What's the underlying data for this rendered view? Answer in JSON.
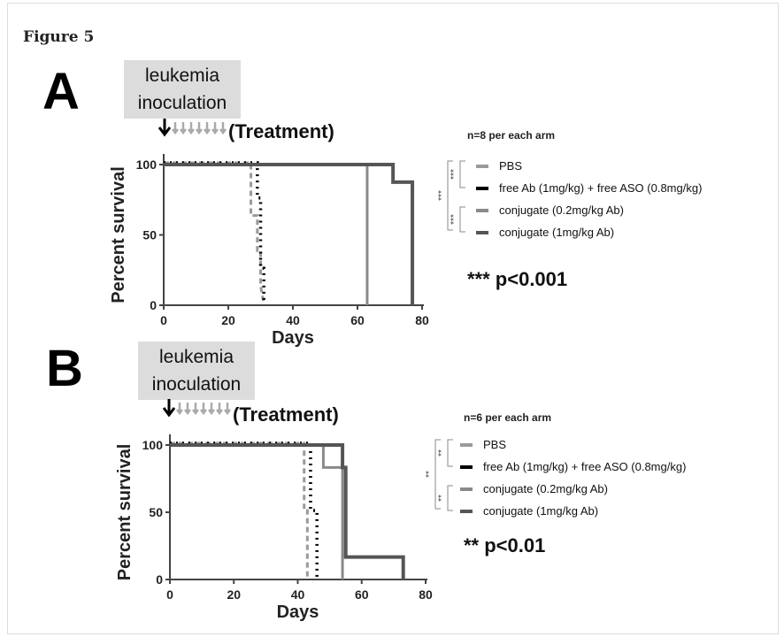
{
  "figure_label": "Figure 5",
  "chart_data": [
    {
      "panel": "A",
      "type": "line",
      "title": "",
      "xlabel": "Days",
      "ylabel": "Percent survival",
      "xlim": [
        0,
        80
      ],
      "ylim": [
        0,
        100
      ],
      "xticks": [
        "0",
        "20",
        "40",
        "60",
        "80"
      ],
      "yticks": [
        "0",
        "50",
        "100"
      ],
      "annotation_top": "leukemia inoculation",
      "treatment_label": "(Treatment)",
      "n_label": "n=8 per each arm",
      "p_label": "*** p<0.001",
      "sig_marks": [
        "***",
        "***",
        "***"
      ],
      "series": [
        {
          "name": "PBS",
          "color": "#9a9a9a",
          "dash": "6,4",
          "x": [
            0,
            27,
            27,
            29,
            29,
            30,
            30,
            31
          ],
          "y": [
            100,
            100,
            62.5,
            62.5,
            37.5,
            37.5,
            12.5,
            0
          ]
        },
        {
          "name": "free Ab (1mg/kg) + free ASO (0.8mg/kg)",
          "color": "#000000",
          "dash": "2,5",
          "x": [
            0,
            29,
            29,
            30,
            30,
            31,
            31
          ],
          "y": [
            100,
            100,
            75,
            75,
            25,
            25,
            0
          ]
        },
        {
          "name": "conjugate (0.2mg/kg Ab)",
          "color": "#8a8a8a",
          "dash": "",
          "x": [
            0,
            63,
            63
          ],
          "y": [
            100,
            100,
            0
          ]
        },
        {
          "name": "conjugate (1mg/kg Ab)",
          "color": "#555555",
          "dash": "",
          "x": [
            0,
            71,
            71,
            77,
            77
          ],
          "y": [
            100,
            100,
            87.5,
            87.5,
            0
          ]
        }
      ]
    },
    {
      "panel": "B",
      "type": "line",
      "title": "",
      "xlabel": "Days",
      "ylabel": "Percent survival",
      "xlim": [
        0,
        80
      ],
      "ylim": [
        0,
        100
      ],
      "xticks": [
        "0",
        "20",
        "40",
        "60",
        "80"
      ],
      "yticks": [
        "0",
        "50",
        "100"
      ],
      "annotation_top": "leukemia inoculation",
      "treatment_label": "(Treatment)",
      "n_label": "n=6 per each arm",
      "p_label": "** p<0.01",
      "sig_marks": [
        "**",
        "**",
        "**"
      ],
      "series": [
        {
          "name": "PBS",
          "color": "#9a9a9a",
          "dash": "6,4",
          "x": [
            0,
            42,
            42,
            43,
            43
          ],
          "y": [
            100,
            100,
            50,
            50,
            0
          ]
        },
        {
          "name": "free Ab (1mg/kg) + free ASO (0.8mg/kg)",
          "color": "#000000",
          "dash": "2,5",
          "x": [
            0,
            44,
            44,
            46,
            46
          ],
          "y": [
            100,
            100,
            50,
            50,
            0
          ]
        },
        {
          "name": "conjugate (0.2mg/kg Ab)",
          "color": "#8a8a8a",
          "dash": "",
          "x": [
            0,
            48,
            48,
            54,
            54
          ],
          "y": [
            100,
            100,
            83.3,
            83.3,
            0
          ]
        },
        {
          "name": "conjugate (1mg/kg Ab)",
          "color": "#555555",
          "dash": "",
          "x": [
            0,
            54,
            54,
            55,
            55,
            73,
            73
          ],
          "y": [
            100,
            100,
            83.3,
            83.3,
            16.7,
            16.7,
            0
          ]
        }
      ]
    }
  ]
}
